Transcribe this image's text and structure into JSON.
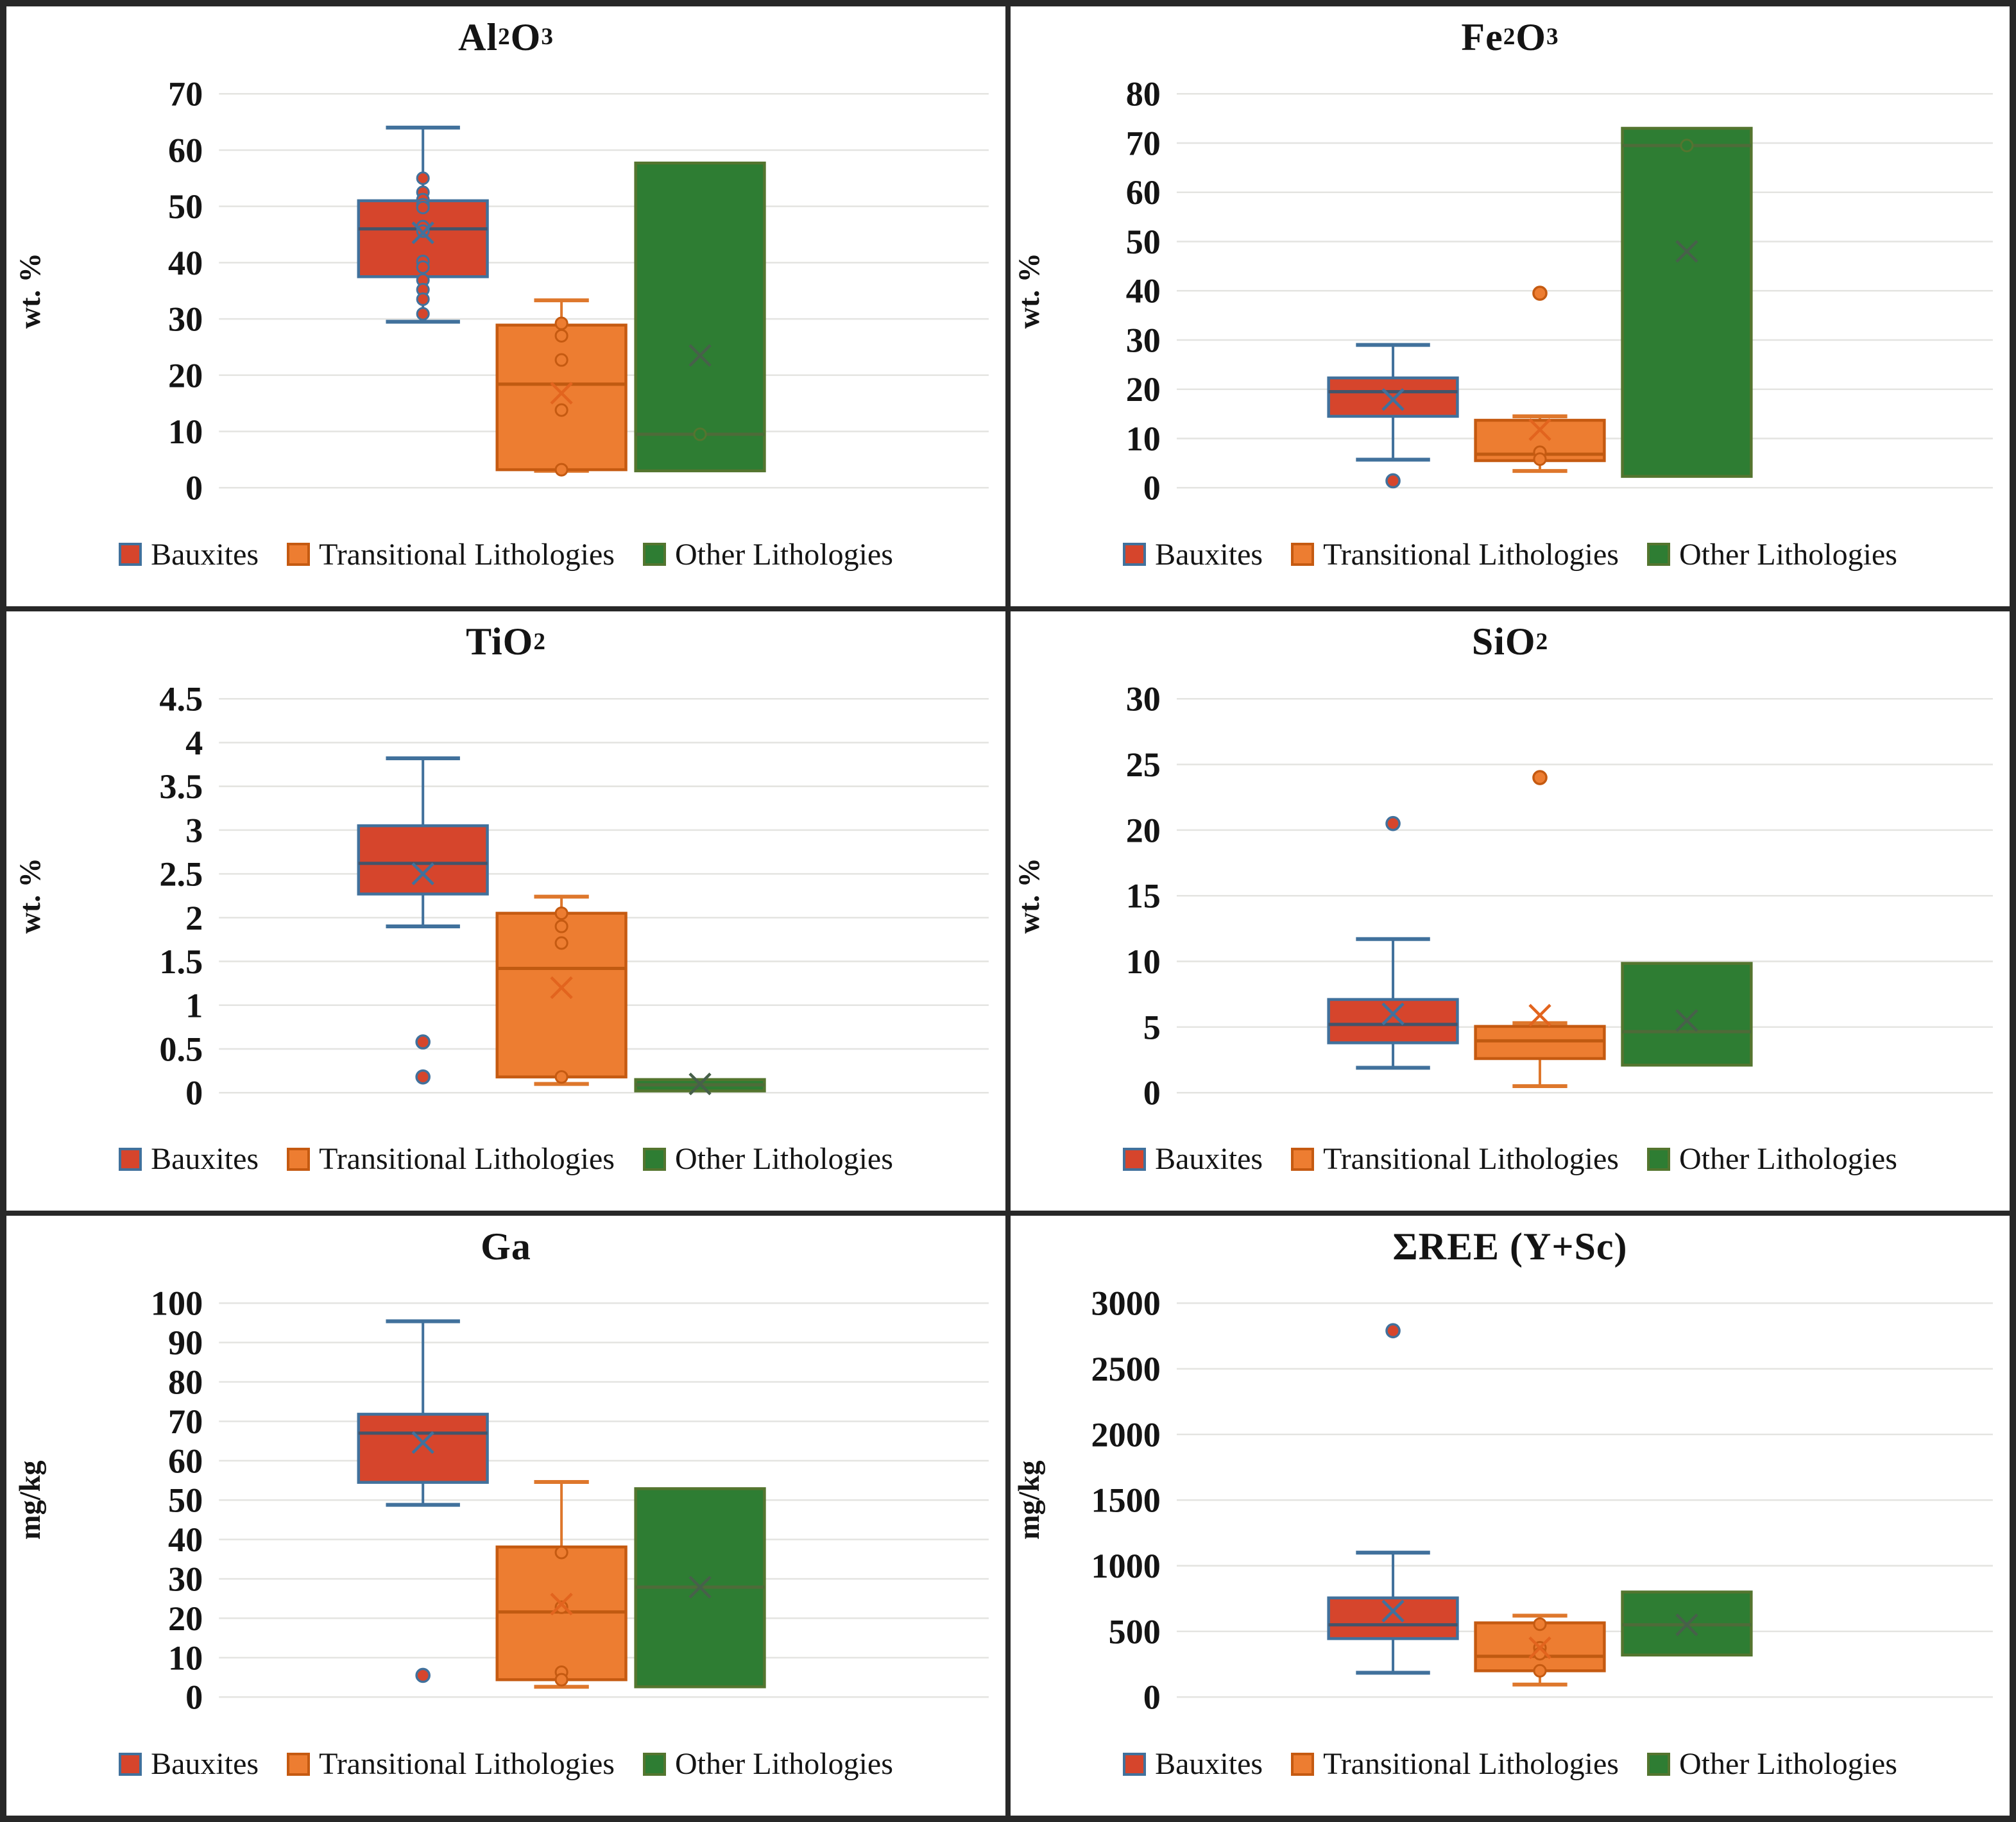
{
  "figure": {
    "background": "#ffffff",
    "frame_color": "#282828",
    "grid_color": "#e4e4e1",
    "text_color": "#141414",
    "legend": {
      "items": [
        {
          "key": "bauxites",
          "label": "Bauxites"
        },
        {
          "key": "transitional",
          "label": "Transitional Lithologies"
        },
        {
          "key": "other",
          "label": "Other Lithologies"
        }
      ]
    },
    "series_styles": {
      "bauxites": {
        "fill": "#d6452c",
        "stroke": "#41719c",
        "whisker": "#41719c",
        "median": "#44546a",
        "mean": "#41719c"
      },
      "transitional": {
        "fill": "#ed7d31",
        "stroke": "#c55a11",
        "whisker": "#de772c",
        "median": "#c05a11",
        "mean": "#e2641e"
      },
      "other": {
        "fill": "#2e7d33",
        "stroke": "#54752f",
        "whisker": "#54752f",
        "median": "#4e6b39",
        "mean": "#47604a"
      }
    }
  },
  "chart_data": [
    {
      "id": "al2o3",
      "type": "box",
      "title": "Al2O3",
      "title_parts": [
        {
          "t": "Al"
        },
        {
          "t": "2",
          "sub": true
        },
        {
          "t": "O"
        },
        {
          "t": "3",
          "sub": true
        }
      ],
      "ylabel": "wt. %",
      "ymin": 0,
      "ymax": 70,
      "ystep": 10,
      "yticks": [
        "0",
        "10",
        "20",
        "30",
        "40",
        "50",
        "60",
        "70"
      ],
      "series": [
        {
          "key": "bauxites",
          "name": "Bauxites",
          "box": {
            "whisker_low": 29.5,
            "q1": 37.5,
            "median": 46,
            "q3": 51,
            "whisker_high": 64,
            "mean": 45.3
          },
          "points": [
            55,
            52.5,
            51.2,
            50.3,
            49.8,
            46.4,
            45.6,
            40.2,
            39.2,
            36.9,
            35.2,
            33.5,
            30.9
          ],
          "outliers": []
        },
        {
          "key": "transitional",
          "name": "Transitional Lithologies",
          "box": {
            "whisker_low": 3.0,
            "q1": 3.2,
            "median": 18.4,
            "q3": 28.9,
            "whisker_high": 33.3,
            "mean": 16.8
          },
          "points": [
            29.2,
            27,
            22.7,
            13.8,
            3.2
          ],
          "outliers": []
        },
        {
          "key": "other",
          "name": "Other Lithologies",
          "box": {
            "q1": 3.0,
            "median": 9.5,
            "q3": 57.7,
            "mean": 23.5
          },
          "points": [
            9.5
          ],
          "outliers": []
        }
      ]
    },
    {
      "id": "fe2o3",
      "type": "box",
      "title": "Fe2O3",
      "title_parts": [
        {
          "t": "Fe"
        },
        {
          "t": "2",
          "sub": true
        },
        {
          "t": "O"
        },
        {
          "t": "3",
          "sub": true
        }
      ],
      "ylabel": "wt. %",
      "ymin": 0,
      "ymax": 80,
      "ystep": 10,
      "yticks": [
        "0",
        "10",
        "20",
        "30",
        "40",
        "50",
        "60",
        "70",
        "80"
      ],
      "series": [
        {
          "key": "bauxites",
          "name": "Bauxites",
          "box": {
            "whisker_low": 5.7,
            "q1": 14.5,
            "median": 19.5,
            "q3": 22.3,
            "whisker_high": 29,
            "mean": 17.9
          },
          "points": [],
          "outliers": [
            1.4
          ]
        },
        {
          "key": "transitional",
          "name": "Transitional Lithologies",
          "box": {
            "whisker_low": 3.4,
            "q1": 5.5,
            "median": 6.8,
            "q3": 13.7,
            "whisker_high": 14.5,
            "mean": 11.8
          },
          "points": [
            7.2,
            5.8
          ],
          "outliers": [
            39.5
          ]
        },
        {
          "key": "other",
          "name": "Other Lithologies",
          "box": {
            "q1": 2.3,
            "median": 69.5,
            "q3": 73,
            "mean": 48
          },
          "points": [
            69.5
          ],
          "outliers": []
        }
      ]
    },
    {
      "id": "tio2",
      "type": "box",
      "title": "TiO2",
      "title_parts": [
        {
          "t": "TiO"
        },
        {
          "t": "2",
          "sub": true
        }
      ],
      "ylabel": "wt. %",
      "ymin": 0,
      "ymax": 4.5,
      "ystep": 0.5,
      "yticks": [
        "0",
        "0.5",
        "1",
        "1.5",
        "2",
        "2.5",
        "3",
        "3.5",
        "4",
        "4.5"
      ],
      "series": [
        {
          "key": "bauxites",
          "name": "Bauxites",
          "box": {
            "whisker_low": 1.9,
            "q1": 2.27,
            "median": 2.62,
            "q3": 3.05,
            "whisker_high": 3.82,
            "mean": 2.5
          },
          "points": [],
          "outliers": [
            0.58,
            0.18
          ]
        },
        {
          "key": "transitional",
          "name": "Transitional Lithologies",
          "box": {
            "whisker_low": 0.1,
            "q1": 0.18,
            "median": 1.42,
            "q3": 2.05,
            "whisker_high": 2.24,
            "mean": 1.2
          },
          "points": [
            2.05,
            1.9,
            1.71,
            0.18
          ],
          "outliers": []
        },
        {
          "key": "other",
          "name": "Other Lithologies",
          "box": {
            "q1": 0.02,
            "median": 0.09,
            "q3": 0.15,
            "mean": 0.1
          },
          "points": [],
          "outliers": []
        }
      ]
    },
    {
      "id": "sio2",
      "type": "box",
      "title": "SiO2",
      "title_parts": [
        {
          "t": "SiO"
        },
        {
          "t": "2",
          "sub": true
        }
      ],
      "ylabel": "wt. %",
      "ymin": 0,
      "ymax": 30,
      "ystep": 5,
      "yticks": [
        "0",
        "5",
        "10",
        "15",
        "20",
        "25",
        "30"
      ],
      "series": [
        {
          "key": "bauxites",
          "name": "Bauxites",
          "box": {
            "whisker_low": 1.9,
            "q1": 3.8,
            "median": 5.2,
            "q3": 7.1,
            "whisker_high": 11.7,
            "mean": 6.0
          },
          "points": [],
          "outliers": [
            20.5
          ]
        },
        {
          "key": "transitional",
          "name": "Transitional Lithologies",
          "box": {
            "whisker_low": 0.5,
            "q1": 2.6,
            "median": 3.95,
            "q3": 5.05,
            "whisker_high": 5.3,
            "mean": 5.9
          },
          "points": [],
          "outliers": [
            24
          ]
        },
        {
          "key": "other",
          "name": "Other Lithologies",
          "box": {
            "q1": 2.1,
            "median": 4.65,
            "q3": 9.85,
            "mean": 5.5
          },
          "points": [],
          "outliers": []
        }
      ]
    },
    {
      "id": "ga",
      "type": "box",
      "title": "Ga",
      "title_parts": [
        {
          "t": "Ga"
        }
      ],
      "ylabel": "mg/kg",
      "ymin": 0,
      "ymax": 100,
      "ystep": 10,
      "yticks": [
        "0",
        "10",
        "20",
        "30",
        "40",
        "50",
        "60",
        "70",
        "80",
        "90",
        "100"
      ],
      "series": [
        {
          "key": "bauxites",
          "name": "Bauxites",
          "box": {
            "whisker_low": 48.8,
            "q1": 54.5,
            "median": 67,
            "q3": 71.8,
            "whisker_high": 95.4,
            "mean": 64.6
          },
          "points": [],
          "outliers": [
            5.5
          ]
        },
        {
          "key": "transitional",
          "name": "Transitional Lithologies",
          "box": {
            "whisker_low": 2.6,
            "q1": 4.4,
            "median": 21.6,
            "q3": 38.1,
            "whisker_high": 54.6,
            "mean": 23.6
          },
          "points": [
            36.7,
            22.8,
            6.3,
            4.4
          ],
          "outliers": []
        },
        {
          "key": "other",
          "name": "Other Lithologies",
          "box": {
            "q1": 2.6,
            "median": 27.9,
            "q3": 52.9,
            "mean": 27.9
          },
          "points": [],
          "outliers": []
        }
      ]
    },
    {
      "id": "ree",
      "type": "box",
      "title": "ΣREE (Y+Sc)",
      "title_parts": [
        {
          "t": "ΣREE (Y+Sc)"
        }
      ],
      "ylabel": "mg/kg",
      "ymin": 0,
      "ymax": 3000,
      "ystep": 500,
      "yticks": [
        "0",
        "500",
        "1000",
        "1500",
        "2000",
        "2500",
        "3000"
      ],
      "series": [
        {
          "key": "bauxites",
          "name": "Bauxites",
          "box": {
            "whisker_low": 185,
            "q1": 445,
            "median": 550,
            "q3": 755,
            "whisker_high": 1100,
            "mean": 655
          },
          "points": [],
          "outliers": [
            2790
          ]
        },
        {
          "key": "transitional",
          "name": "Transitional Lithologies",
          "box": {
            "whisker_low": 95,
            "q1": 200,
            "median": 310,
            "q3": 565,
            "whisker_high": 620,
            "mean": 375
          },
          "points": [
            555,
            375,
            330,
            200
          ],
          "outliers": []
        },
        {
          "key": "other",
          "name": "Other Lithologies",
          "box": {
            "q1": 320,
            "median": 550,
            "q3": 800,
            "mean": 550
          },
          "points": [],
          "outliers": []
        }
      ]
    }
  ]
}
